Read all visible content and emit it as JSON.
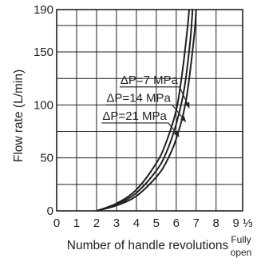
{
  "chart_data": {
    "type": "line",
    "xlabel": "Number of handle revolutions",
    "ylabel": "Flow rate (L/min)",
    "xlim": [
      0,
      9.333
    ],
    "ylim": [
      0,
      190
    ],
    "x_ticks": [
      {
        "value": 0,
        "label": "0"
      },
      {
        "value": 1,
        "label": "1"
      },
      {
        "value": 2,
        "label": "2"
      },
      {
        "value": 3,
        "label": "3"
      },
      {
        "value": 4,
        "label": "4"
      },
      {
        "value": 5,
        "label": "5"
      },
      {
        "value": 6,
        "label": "6"
      },
      {
        "value": 7,
        "label": "7"
      },
      {
        "value": 8,
        "label": "8"
      },
      {
        "value": 9.333,
        "label": "9 ⅓"
      }
    ],
    "x_end_annotation": [
      "Fully",
      "open"
    ],
    "y_ticks": [
      0,
      50,
      100,
      150,
      190
    ],
    "grid": true,
    "series": [
      {
        "name": "ΔP=21 MPa",
        "points": [
          [
            2.0,
            0
          ],
          [
            3.0,
            7
          ],
          [
            4.0,
            20
          ],
          [
            5.0,
            45
          ],
          [
            5.5,
            65
          ],
          [
            6.0,
            95
          ],
          [
            6.3,
            130
          ],
          [
            6.55,
            170
          ],
          [
            6.65,
            190
          ]
        ]
      },
      {
        "name": "ΔP=14 MPa",
        "points": [
          [
            2.0,
            0
          ],
          [
            3.0,
            6
          ],
          [
            4.0,
            17
          ],
          [
            5.0,
            38
          ],
          [
            5.5,
            55
          ],
          [
            6.0,
            82
          ],
          [
            6.4,
            115
          ],
          [
            6.7,
            160
          ],
          [
            6.82,
            190
          ]
        ]
      },
      {
        "name": "ΔP=7 MPa",
        "points": [
          [
            2.0,
            0
          ],
          [
            3.0,
            5
          ],
          [
            4.0,
            14
          ],
          [
            5.0,
            32
          ],
          [
            5.5,
            46
          ],
          [
            6.0,
            68
          ],
          [
            6.5,
            105
          ],
          [
            6.9,
            165
          ],
          [
            7.0,
            190
          ]
        ]
      }
    ]
  }
}
